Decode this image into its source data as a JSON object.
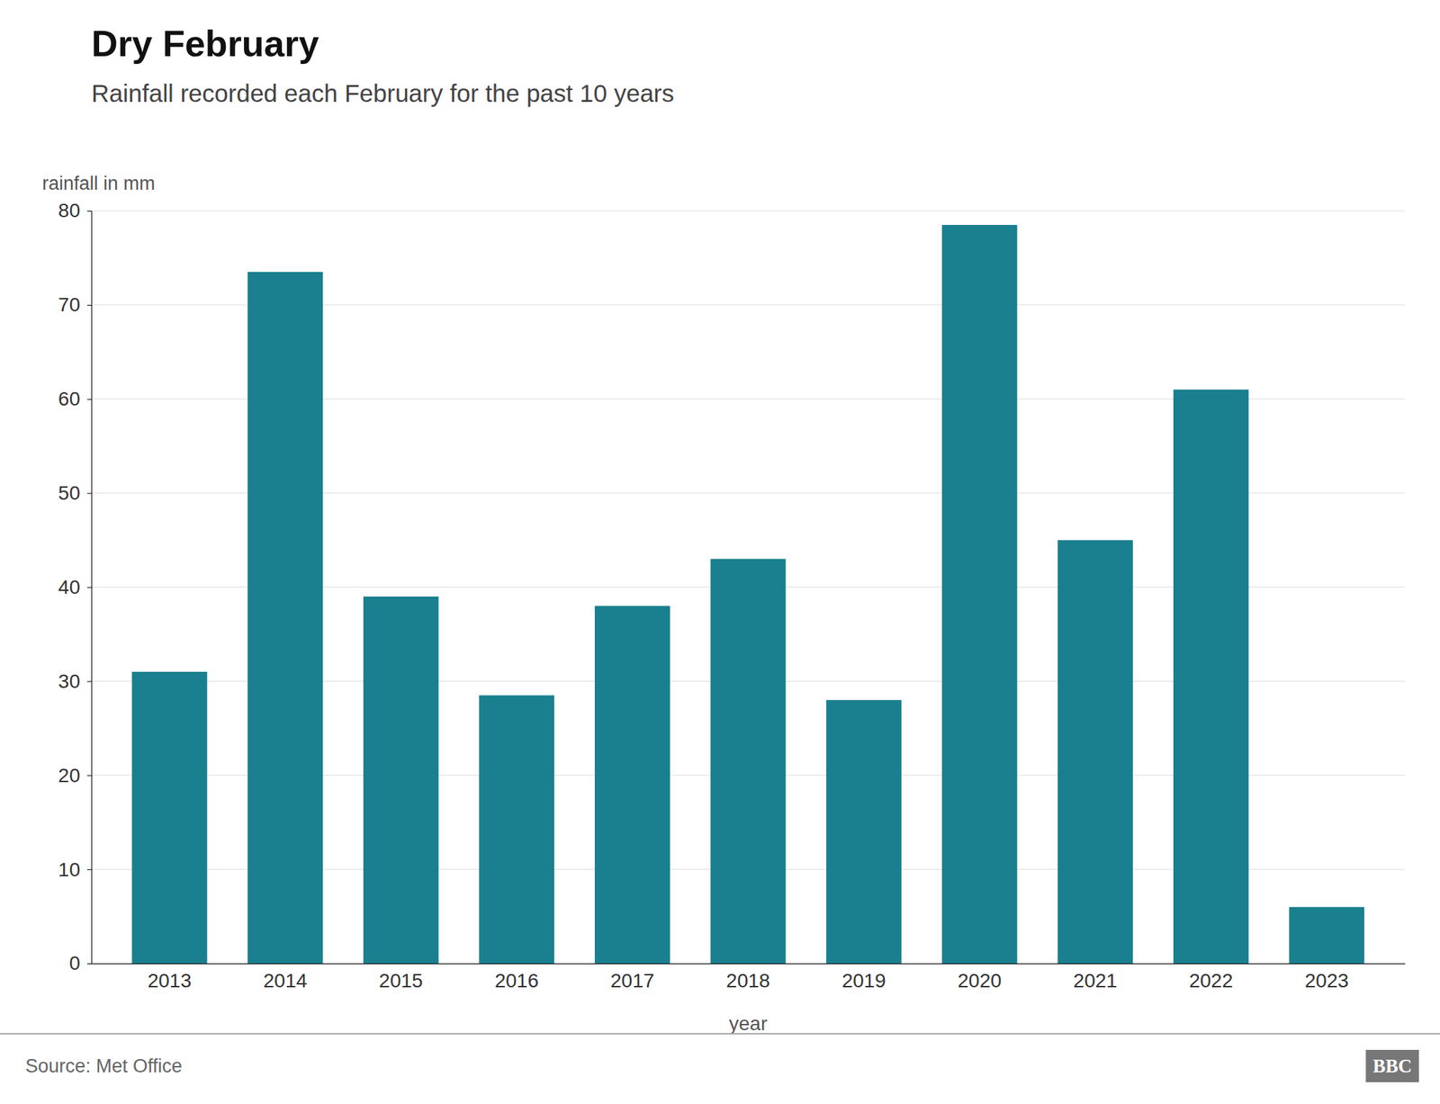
{
  "chart_data": {
    "type": "bar",
    "title": "Dry February",
    "subtitle": "Rainfall recorded each February for the past 10 years",
    "ylabel": "rainfall in mm",
    "xlabel": "year",
    "source": "Source: Met Office",
    "logo": "BBC",
    "categories": [
      "2013",
      "2014",
      "2015",
      "2016",
      "2017",
      "2018",
      "2019",
      "2020",
      "2021",
      "2022",
      "2023"
    ],
    "values": [
      31,
      73.5,
      39,
      28.5,
      38,
      43,
      28,
      78.5,
      45,
      61,
      6
    ],
    "color": "#1a7f8e",
    "ylim": [
      0,
      80
    ],
    "yticks": [
      0,
      10,
      20,
      30,
      40,
      50,
      60,
      70,
      80
    ],
    "grid": true
  }
}
